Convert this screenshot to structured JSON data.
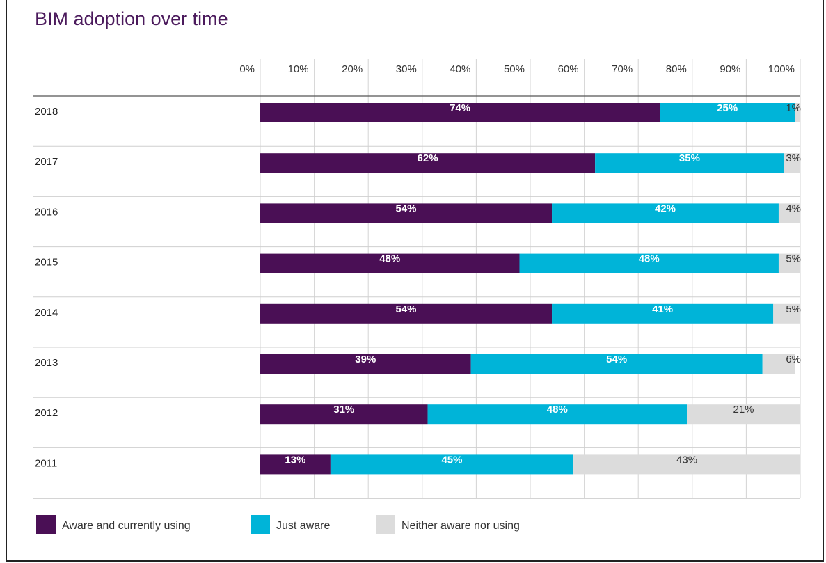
{
  "title": "BIM adoption over time",
  "chart_data": {
    "type": "bar",
    "orientation": "horizontal",
    "stacked": true,
    "title": "BIM adoption over time",
    "categories": [
      "2018",
      "2017",
      "2016",
      "2015",
      "2014",
      "2013",
      "2012",
      "2011"
    ],
    "series": [
      {
        "name": "Aware and currently using",
        "color": "#4a0f55",
        "values": [
          74,
          62,
          54,
          48,
          54,
          39,
          31,
          13
        ]
      },
      {
        "name": "Just aware",
        "color": "#00b4d8",
        "values": [
          25,
          35,
          42,
          48,
          41,
          54,
          48,
          45
        ]
      },
      {
        "name": "Neither aware nor using",
        "color": "#dcdcdc",
        "values": [
          1,
          3,
          4,
          5,
          5,
          6,
          21,
          43
        ]
      }
    ],
    "xlim": [
      0,
      100
    ],
    "xticks": [
      "0%",
      "10%",
      "20%",
      "30%",
      "40%",
      "50%",
      "60%",
      "70%",
      "80%",
      "90%",
      "100%"
    ],
    "grid": true,
    "legend_position": "bottom-left"
  }
}
